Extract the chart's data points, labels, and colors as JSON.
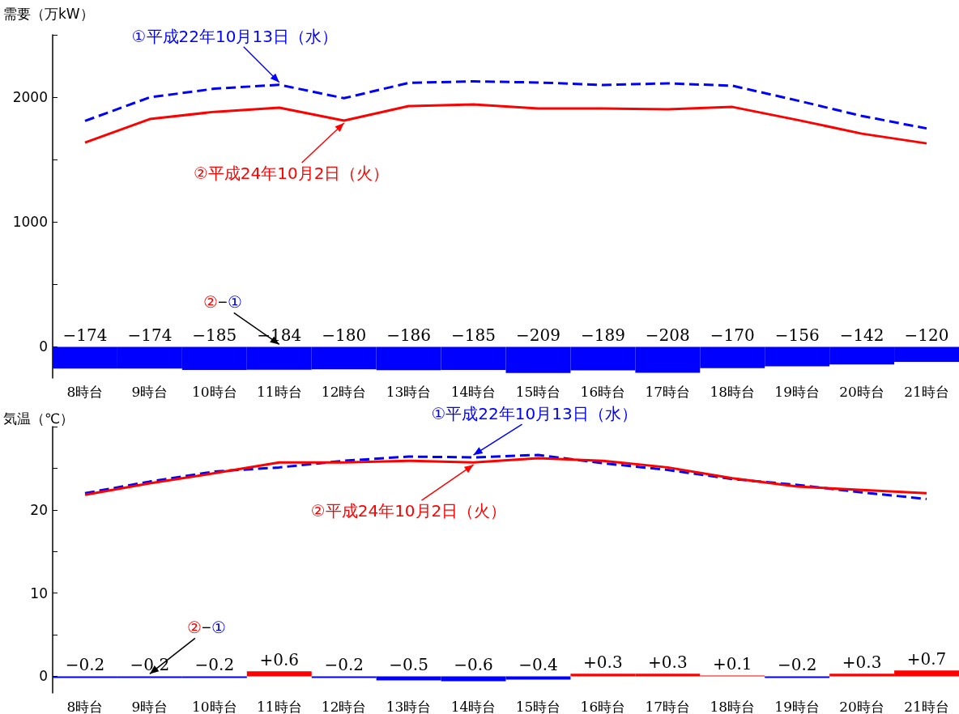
{
  "chart_data": [
    {
      "type": "line",
      "ylabel": "需要（万kW）",
      "categories": [
        "8時台",
        "9時台",
        "10時台",
        "11時台",
        "12時台",
        "13時台",
        "14時台",
        "15時台",
        "16時台",
        "17時台",
        "18時台",
        "19時台",
        "20時台",
        "21時台"
      ],
      "ylim": [
        -250,
        2500
      ],
      "yticks": [
        0,
        {
          "value": 500,
          "label": null
        },
        1000,
        {
          "value": 1500,
          "label": null
        },
        2000,
        {
          "value": 2500,
          "label": null
        }
      ],
      "marker": "none",
      "annotations": [
        {
          "text": "①平成22年10月13日（水）",
          "x": "11時台",
          "y": 2100
        },
        {
          "text": "②平成24年10月2日（火）",
          "x": "12時台",
          "y": 1812
        },
        {
          "text": "②−①",
          "x": "11時台",
          "y": 0
        }
      ],
      "series": [
        {
          "color": "#0000ff",
          "line_style": "dashed",
          "values": [
            1810,
            1999,
            2068,
            2100,
            1992,
            2115,
            2127,
            2118,
            2098,
            2111,
            2092,
            1974,
            1850,
            1750
          ]
        },
        {
          "color": "#ff0000",
          "line_style": "solid",
          "values": [
            1636,
            1825,
            1883,
            1916,
            1812,
            1929,
            1942,
            1909,
            1909,
            1903,
            1922,
            1818,
            1708,
            1630
          ]
        },
        {
          "type": "bar",
          "colors": [
            "#0000ff",
            "#0000ff",
            "#0000ff",
            "#0000ff",
            "#0000ff",
            "#0000ff",
            "#0000ff",
            "#0000ff",
            "#0000ff",
            "#0000ff",
            "#0000ff",
            "#0000ff",
            "#0000ff",
            "#0000ff"
          ],
          "values": [
            -174,
            -174,
            -185,
            -184,
            -180,
            -186,
            -185,
            -209,
            -189,
            -208,
            -170,
            -156,
            -142,
            -120
          ],
          "value_labels": [
            "−174",
            "−174",
            "−185",
            "−184",
            "−180",
            "−186",
            "−185",
            "−209",
            "−189",
            "−208",
            "−170",
            "−156",
            "−142",
            "−120"
          ]
        }
      ]
    },
    {
      "type": "line",
      "ylabel": "気温（℃）",
      "categories": [
        "8時台",
        "9時台",
        "10時台",
        "11時台",
        "12時台",
        "13時台",
        "14時台",
        "15時台",
        "16時台",
        "17時台",
        "18時台",
        "19時台",
        "20時台",
        "21時台"
      ],
      "ylim": [
        -2,
        30
      ],
      "yticks": [
        0,
        {
          "value": 5,
          "label": null
        },
        10,
        {
          "value": 15,
          "label": null
        },
        20,
        {
          "value": 25,
          "label": null
        },
        {
          "value": 30,
          "label": null
        }
      ],
      "marker": "none",
      "annotations": [
        {
          "text": "①平成22年10月13日（水）",
          "x": "14時台",
          "y": 26.3
        },
        {
          "text": "②平成24年10月2日（火）",
          "x": "14時台",
          "y": 25.7
        },
        {
          "text": "②−①",
          "x": "9時台",
          "y": 0
        }
      ],
      "series": [
        {
          "color": "#0000ff",
          "line_style": "dashed",
          "values": [
            22.0,
            23.4,
            24.6,
            25.1,
            25.9,
            26.4,
            26.3,
            26.6,
            25.6,
            24.8,
            23.7,
            23.0,
            22.1,
            21.3
          ]
        },
        {
          "color": "#ff0000",
          "line_style": "solid",
          "values": [
            21.8,
            23.2,
            24.4,
            25.7,
            25.7,
            25.9,
            25.7,
            26.2,
            25.9,
            25.1,
            23.8,
            22.8,
            22.4,
            22.0
          ]
        },
        {
          "type": "bar",
          "colors": [
            "#0000ff",
            "#0000ff",
            "#0000ff",
            "#ff0000",
            "#0000ff",
            "#0000ff",
            "#0000ff",
            "#0000ff",
            "#ff0000",
            "#ff0000",
            "#ff0000",
            "#0000ff",
            "#ff0000",
            "#ff0000"
          ],
          "values": [
            -0.2,
            -0.2,
            -0.2,
            0.6,
            -0.2,
            -0.5,
            -0.6,
            -0.4,
            0.3,
            0.3,
            0.1,
            -0.2,
            0.3,
            0.7
          ],
          "value_labels": [
            "−0.2",
            "−0.2",
            "−0.2",
            "+0.6",
            "−0.2",
            "−0.5",
            "−0.6",
            "−0.4",
            "+0.3",
            "+0.3",
            "+0.1",
            "−0.2",
            "+0.3",
            "+0.7"
          ]
        }
      ]
    }
  ]
}
